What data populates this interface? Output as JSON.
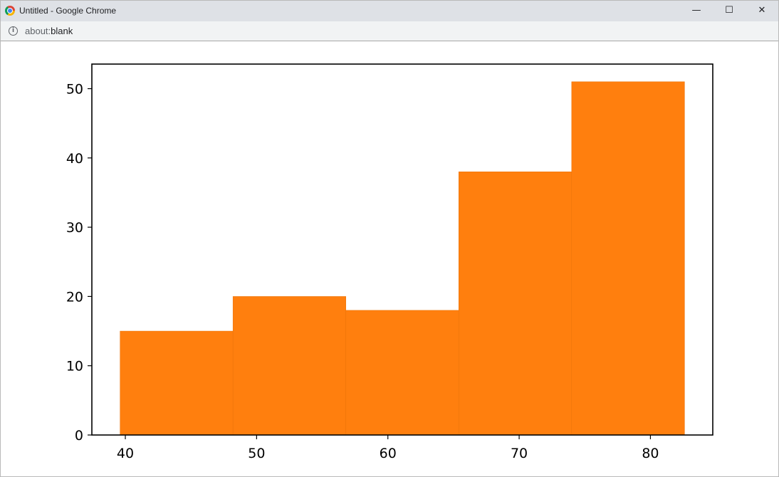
{
  "window": {
    "title": "Untitled - Google Chrome",
    "minimize_glyph": "—",
    "maximize_glyph": "☐",
    "close_glyph": "✕"
  },
  "address_bar": {
    "info_glyph": "i",
    "url_scheme": "about:",
    "url_rest": "blank"
  },
  "icons": {
    "browser": "chrome-logo-icon",
    "site_info": "info-icon"
  },
  "chart_data": {
    "type": "bar",
    "subtype": "histogram",
    "color": "#ff7f0e",
    "bins": [
      {
        "start": 39.6,
        "end": 48.2,
        "count": 15
      },
      {
        "start": 48.2,
        "end": 56.8,
        "count": 20
      },
      {
        "start": 56.8,
        "end": 65.4,
        "count": 18
      },
      {
        "start": 65.4,
        "end": 74.0,
        "count": 38
      },
      {
        "start": 74.0,
        "end": 82.6,
        "count": 51
      }
    ],
    "xlim": [
      37.45,
      84.75
    ],
    "ylim": [
      0,
      53.55
    ],
    "xticks": [
      40,
      50,
      60,
      70,
      80
    ],
    "yticks": [
      0,
      10,
      20,
      30,
      40,
      50
    ],
    "title": "",
    "xlabel": "",
    "ylabel": "",
    "grid": false,
    "legend": false
  }
}
